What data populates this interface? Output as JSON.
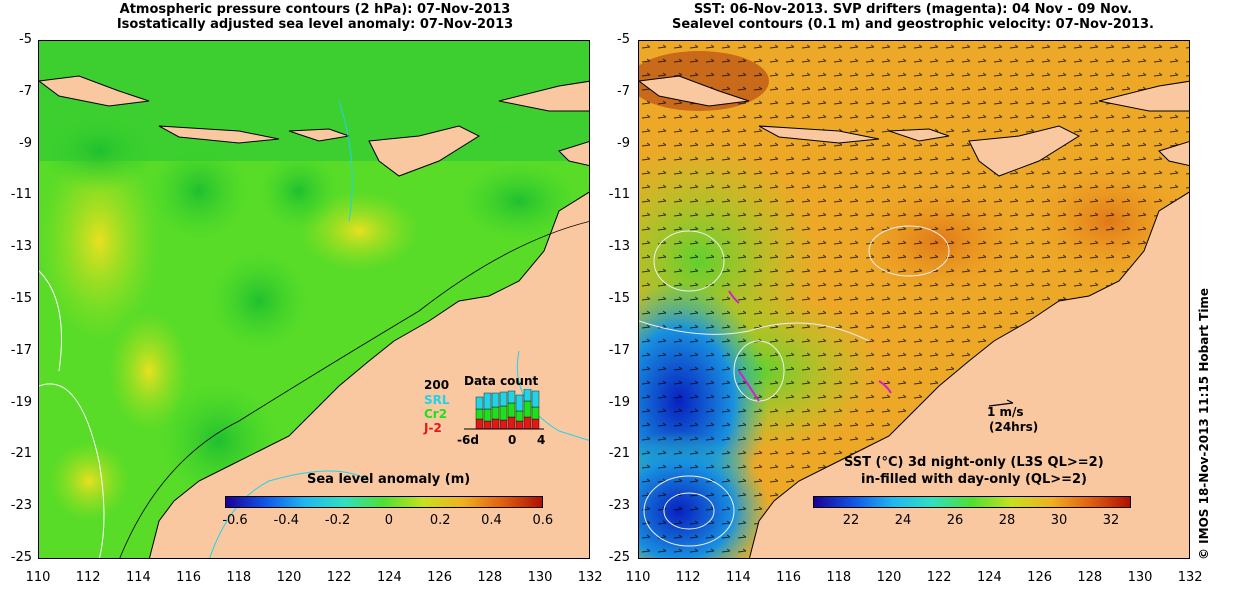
{
  "left_panel": {
    "title_line1": "Atmospheric pressure contours (2 hPa): 07-Nov-2013",
    "title_line2": "Isostatically adjusted sea level anomaly: 07-Nov-2013",
    "colorbar_label": "Sea level anomaly (m)",
    "colorbar_ticks": [
      "-0.6",
      "-0.4",
      "-0.2",
      "0",
      "0.2",
      "0.4",
      "0.6"
    ],
    "inset": {
      "title": "Data count",
      "max_label": "200",
      "series": [
        {
          "name": "SRL",
          "color": "#22d3e8"
        },
        {
          "name": "Cr2",
          "color": "#1fe01f"
        },
        {
          "name": "J-2",
          "color": "#e01818"
        }
      ],
      "x_left": "-6d",
      "x_mid": "0",
      "x_right": "4"
    }
  },
  "right_panel": {
    "title_line1": "SST: 06-Nov-2013. SVP drifters (magenta): 04 Nov - 09 Nov.",
    "title_line2": "Sealevel contours (0.1 m) and geostrophic velocity: 07-Nov-2013.",
    "colorbar_label_line1": "SST (°C)  3d night-only (L3S QL>=2)",
    "colorbar_label_line2": "in-filled with day-only (QL>=2)",
    "colorbar_ticks": [
      "22",
      "24",
      "26",
      "28",
      "30",
      "32"
    ],
    "scale_label": "1 m/s",
    "scale_sub": "(24hrs)"
  },
  "axes": {
    "y_ticks": [
      "-5",
      "-7",
      "-9",
      "-11",
      "-13",
      "-15",
      "-17",
      "-19",
      "-21",
      "-23",
      "-25"
    ],
    "x_ticks": [
      "110",
      "112",
      "114",
      "116",
      "118",
      "120",
      "122",
      "124",
      "126",
      "128",
      "130",
      "132"
    ]
  },
  "credit": "© IMOS 18-Nov-2013 11:15 Hobart Time",
  "colors": {
    "land": "#f9c8a0",
    "coast": "#000000",
    "shelf": "#22d3e8"
  }
}
